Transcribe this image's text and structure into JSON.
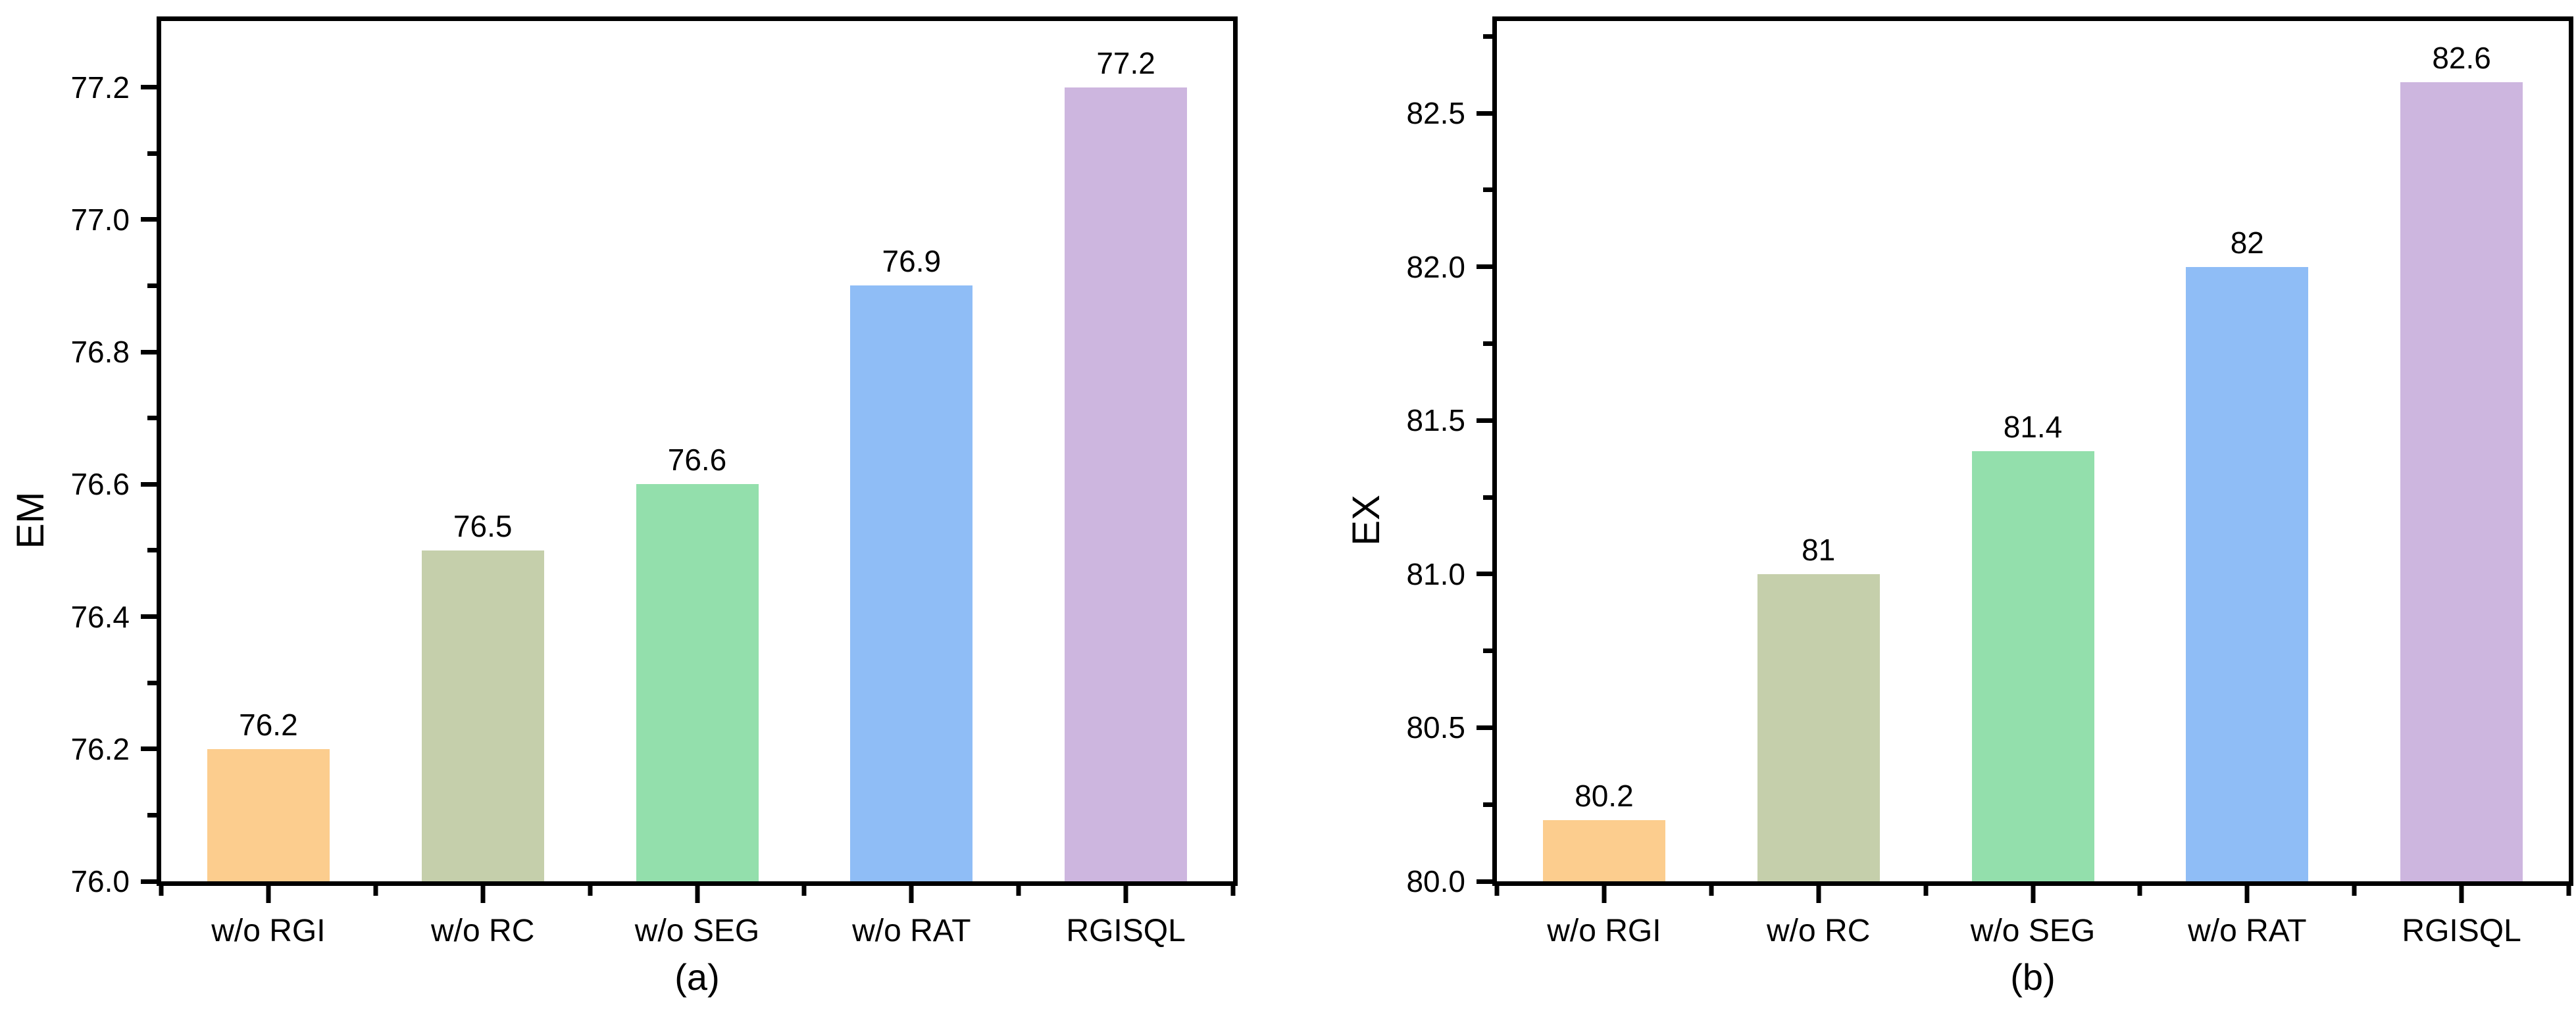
{
  "figure": {
    "background": "#ffffff",
    "spine_color": "#000000",
    "text_color": "#000000"
  },
  "chart_data": [
    {
      "type": "bar",
      "panel_label": "(a)",
      "ylabel": "EM",
      "xlabel": "",
      "categories": [
        "w/o RGI",
        "w/o RC",
        "w/o SEG",
        "w/o RAT",
        "RGISQL"
      ],
      "values": [
        76.2,
        76.5,
        76.6,
        76.9,
        77.2
      ],
      "value_labels": [
        "76.2",
        "76.5",
        "76.6",
        "76.9",
        "77.2"
      ],
      "ylim": [
        76.0,
        77.3
      ],
      "yticks": [
        76.0,
        76.2,
        76.4,
        76.6,
        76.8,
        77.0,
        77.2
      ],
      "ytick_labels": [
        "76.0",
        "76.2",
        "76.4",
        "76.6",
        "76.8",
        "77.0",
        "77.2"
      ],
      "yticks_minor": [
        76.1,
        76.3,
        76.5,
        76.7,
        76.9,
        77.1
      ],
      "bar_colors": [
        "#fccd8e",
        "#c5cfab",
        "#93dfac",
        "#8fbdf6",
        "#cdb6df"
      ],
      "grid": false,
      "legend": null
    },
    {
      "type": "bar",
      "panel_label": "(b)",
      "ylabel": "EX",
      "xlabel": "",
      "categories": [
        "w/o RGI",
        "w/o RC",
        "w/o SEG",
        "w/o RAT",
        "RGISQL"
      ],
      "values": [
        80.2,
        81,
        81.4,
        82,
        82.6
      ],
      "value_labels": [
        "80.2",
        "81",
        "81.4",
        "82",
        "82.6"
      ],
      "ylim": [
        80.0,
        82.8
      ],
      "yticks": [
        80.0,
        80.5,
        81.0,
        81.5,
        82.0,
        82.5
      ],
      "ytick_labels": [
        "80.0",
        "80.5",
        "81.0",
        "81.5",
        "82.0",
        "82.5"
      ],
      "yticks_minor": [
        80.25,
        80.75,
        81.25,
        81.75,
        82.25,
        82.75
      ],
      "bar_colors": [
        "#fccd8e",
        "#c5cfab",
        "#93dfac",
        "#8fbdf6",
        "#cdb6df"
      ],
      "grid": false,
      "legend": null
    }
  ]
}
